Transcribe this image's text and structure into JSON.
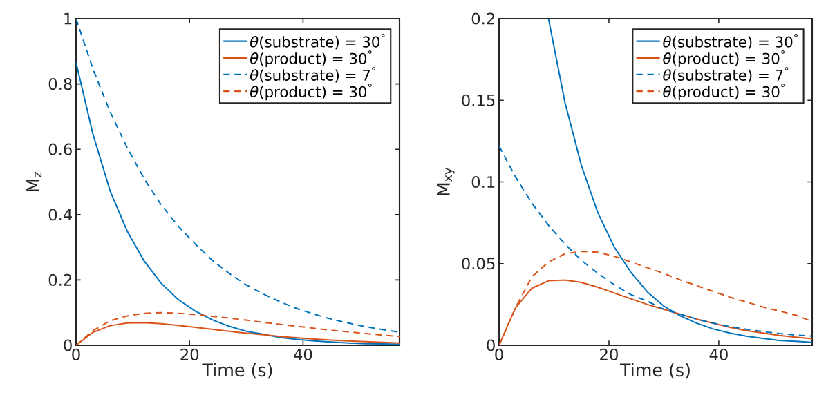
{
  "chart_data": [
    {
      "type": "line",
      "xlabel": "Time (s)",
      "ylabel": "M$_{z}$",
      "xlim": [
        0,
        57
      ],
      "xticks": [
        0,
        20,
        40
      ],
      "ylim": [
        0,
        1
      ],
      "yticks": [
        0,
        0.2,
        0.4,
        0.6,
        0.8,
        1
      ],
      "legend": "top right",
      "x": [
        0,
        3,
        6,
        9,
        12,
        15,
        18,
        21,
        24,
        27,
        30,
        33,
        36,
        39,
        42,
        45,
        48,
        51,
        54,
        57
      ],
      "series": [
        {
          "name": "*θ*(substrate) = 30$^{°}$",
          "color": "#0072bd",
          "line_style": "solid",
          "values": [
            0.866,
            0.645,
            0.473,
            0.35,
            0.258,
            0.19,
            0.14,
            0.105,
            0.078,
            0.058,
            0.043,
            0.034,
            0.024,
            0.018,
            0.013,
            0.01,
            0.007,
            0.005,
            0.004,
            0.003
          ]
        },
        {
          "name": "*θ*(product) = 30$^{°}$",
          "color": "#d95319",
          "line_style": "solid",
          "values": [
            0,
            0.04,
            0.06,
            0.068,
            0.069,
            0.066,
            0.061,
            0.055,
            0.049,
            0.043,
            0.037,
            0.032,
            0.027,
            0.023,
            0.019,
            0.016,
            0.013,
            0.011,
            0.009,
            0.007
          ]
        },
        {
          "name": "*θ*(substrate) = 7$^{°}$",
          "color": "#0072bd",
          "line_style": "dashed",
          "values": [
            1,
            0.845,
            0.715,
            0.605,
            0.51,
            0.43,
            0.365,
            0.31,
            0.26,
            0.22,
            0.185,
            0.157,
            0.133,
            0.112,
            0.095,
            0.08,
            0.068,
            0.057,
            0.048,
            0.04
          ]
        },
        {
          "name": "*θ*(product) = 30$^{°}$",
          "color": "#d95319",
          "line_style": "dashed",
          "values": [
            0,
            0.045,
            0.075,
            0.09,
            0.098,
            0.1,
            0.098,
            0.094,
            0.089,
            0.083,
            0.077,
            0.07,
            0.064,
            0.058,
            0.052,
            0.046,
            0.041,
            0.036,
            0.031,
            0.027
          ]
        }
      ]
    },
    {
      "type": "line",
      "xlabel": "Time (s)",
      "ylabel": "M$_{xy}$",
      "xlim": [
        0,
        57
      ],
      "xticks": [
        0,
        20,
        40
      ],
      "ylim": [
        0,
        0.2
      ],
      "yticks": [
        0,
        0.05,
        0.1,
        0.15,
        0.2
      ],
      "legend": "top right",
      "x": [
        0,
        3,
        6,
        9,
        12,
        15,
        18,
        21,
        24,
        27,
        30,
        33,
        36,
        39,
        42,
        45,
        48,
        51,
        54,
        57
      ],
      "series": [
        {
          "name": "*θ*(substrate) = 30$^{°}$",
          "color": "#0072bd",
          "line_style": "solid",
          "values": [
            null,
            null,
            null,
            0.2,
            0.1486,
            0.11,
            0.081,
            0.06,
            0.0447,
            0.0327,
            0.024,
            0.018,
            0.0135,
            0.01,
            0.0075,
            0.0056,
            0.0042,
            0.003,
            0.0024,
            0.0018
          ]
        },
        {
          "name": "*θ*(product) = 30$^{°}$",
          "color": "#d95319",
          "line_style": "solid",
          "values": [
            0,
            0.023,
            0.035,
            0.0395,
            0.04,
            0.0385,
            0.0355,
            0.032,
            0.0285,
            0.025,
            0.022,
            0.019,
            0.016,
            0.0135,
            0.011,
            0.009,
            0.0075,
            0.006,
            0.005,
            0.004
          ]
        },
        {
          "name": "*θ*(substrate) = 7$^{°}$",
          "color": "#0072bd",
          "line_style": "dashed",
          "values": [
            0.122,
            0.103,
            0.087,
            0.0735,
            0.062,
            0.052,
            0.044,
            0.037,
            0.031,
            0.027,
            0.022,
            0.019,
            0.016,
            0.0135,
            0.0115,
            0.0098,
            0.0084,
            0.0072,
            0.0063,
            0.0056
          ]
        },
        {
          "name": "*θ*(product) = 30$^{°}$",
          "color": "#d95319",
          "line_style": "dashed",
          "values": [
            0,
            0.023,
            0.042,
            0.051,
            0.056,
            0.0575,
            0.057,
            0.0545,
            0.051,
            0.0475,
            0.044,
            0.04,
            0.0365,
            0.033,
            0.0295,
            0.0265,
            0.0235,
            0.021,
            0.0185,
            0.0145
          ]
        }
      ]
    }
  ]
}
